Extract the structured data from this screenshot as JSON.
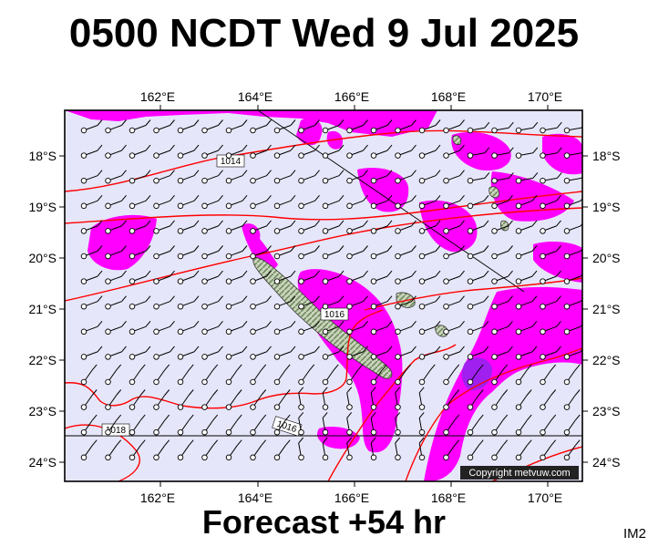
{
  "header": {
    "title": "0500 NCDT Wed 9 Jul 2025"
  },
  "footer": {
    "forecast": "Forecast +54 hr",
    "code": "IM2"
  },
  "map": {
    "lon_labels": [
      "162°E",
      "164°E",
      "166°E",
      "168°E",
      "170°E"
    ],
    "lat_labels": [
      "18°S",
      "19°S",
      "20°S",
      "21°S",
      "22°S",
      "23°S",
      "24°S"
    ],
    "isobar_labels": [
      "1014",
      "1016",
      "1016",
      "1018"
    ],
    "copyright": "Copyright metvuw.com",
    "colors": {
      "background": "#e6e6fa",
      "rain": "#ff00ff",
      "heavy_rain": "#a020f0",
      "isobar": "#ff0000",
      "land": "#9db08a"
    }
  }
}
